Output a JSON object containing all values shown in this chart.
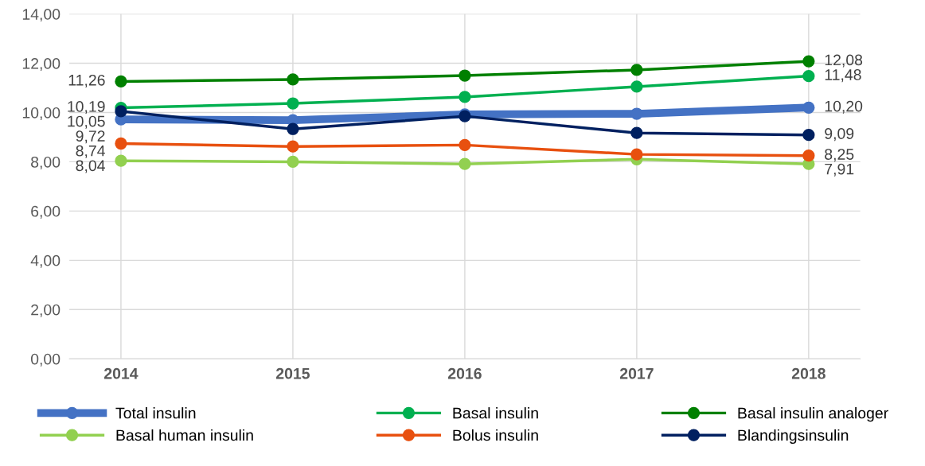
{
  "chart_data": {
    "type": "line",
    "categories": [
      "2014",
      "2015",
      "2016",
      "2017",
      "2018"
    ],
    "series": [
      {
        "name": "Total insulin",
        "color": "#4472c4",
        "values": [
          9.72,
          9.69,
          9.92,
          9.95,
          10.2
        ],
        "value_labels": [
          "9,72",
          null,
          null,
          null,
          "10,20"
        ]
      },
      {
        "name": "Basal insulin",
        "color": "#00b050",
        "values": [
          10.19,
          10.37,
          10.63,
          11.05,
          11.48
        ],
        "value_labels": [
          "10,19",
          null,
          null,
          null,
          "11,48"
        ]
      },
      {
        "name": "Basal insulin analoger",
        "color": "#008000",
        "values": [
          11.26,
          11.34,
          11.5,
          11.73,
          12.08
        ],
        "value_labels": [
          "11,26",
          null,
          null,
          null,
          "12,08"
        ]
      },
      {
        "name": "Basal human insulin",
        "color": "#92d050",
        "values": [
          8.04,
          8.0,
          7.91,
          8.1,
          7.91
        ],
        "value_labels": [
          "8,04",
          null,
          null,
          null,
          "7,91"
        ]
      },
      {
        "name": "Bolus insulin",
        "color": "#e8500f",
        "values": [
          8.74,
          8.62,
          8.68,
          8.3,
          8.25
        ],
        "value_labels": [
          "8,74",
          null,
          null,
          null,
          "8,25"
        ]
      },
      {
        "name": "Blandingsinsulin",
        "color": "#002060",
        "values": [
          10.05,
          9.33,
          9.85,
          9.17,
          9.09
        ],
        "value_labels": [
          "10,05",
          null,
          null,
          null,
          "9,09"
        ]
      }
    ],
    "ylim": [
      0,
      14
    ],
    "yticks": [
      {
        "value": 0,
        "label": "0,00"
      },
      {
        "value": 2,
        "label": "2,00"
      },
      {
        "value": 4,
        "label": "4,00"
      },
      {
        "value": 6,
        "label": "6,00"
      },
      {
        "value": 8,
        "label": "8,00"
      },
      {
        "value": 10,
        "label": "10,00"
      },
      {
        "value": 12,
        "label": "12,00"
      },
      {
        "value": 14,
        "label": "14,00"
      }
    ],
    "grid": true,
    "legend": "bottom",
    "marker": "circle",
    "line_style": "solid"
  }
}
